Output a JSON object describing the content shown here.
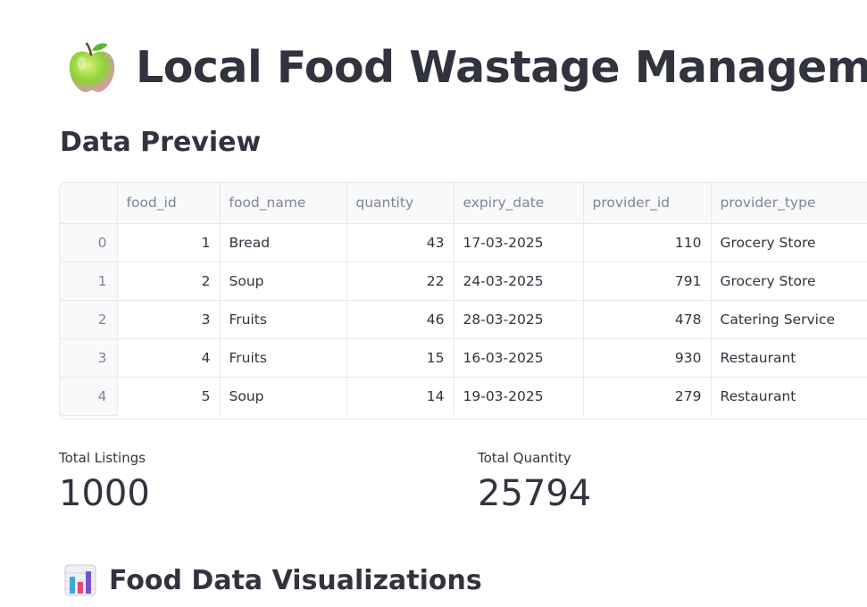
{
  "title": {
    "icon": "green-apple-icon",
    "text": "Local Food Wastage Management System"
  },
  "preview": {
    "heading": "Data Preview",
    "columns": [
      "food_id",
      "food_name",
      "quantity",
      "expiry_date",
      "provider_id",
      "provider_type"
    ],
    "rows": [
      {
        "index": "0",
        "food_id": "1",
        "food_name": "Bread",
        "quantity": "43",
        "expiry_date": "17-03-2025",
        "provider_id": "110",
        "provider_type": "Grocery Store"
      },
      {
        "index": "1",
        "food_id": "2",
        "food_name": "Soup",
        "quantity": "22",
        "expiry_date": "24-03-2025",
        "provider_id": "791",
        "provider_type": "Grocery Store"
      },
      {
        "index": "2",
        "food_id": "3",
        "food_name": "Fruits",
        "quantity": "46",
        "expiry_date": "28-03-2025",
        "provider_id": "478",
        "provider_type": "Catering Service"
      },
      {
        "index": "3",
        "food_id": "4",
        "food_name": "Fruits",
        "quantity": "15",
        "expiry_date": "16-03-2025",
        "provider_id": "930",
        "provider_type": "Restaurant"
      },
      {
        "index": "4",
        "food_id": "5",
        "food_name": "Soup",
        "quantity": "14",
        "expiry_date": "19-03-2025",
        "provider_id": "279",
        "provider_type": "Restaurant"
      }
    ]
  },
  "metrics": {
    "total_listings": {
      "label": "Total Listings",
      "value": "1000"
    },
    "total_quantity": {
      "label": "Total Quantity",
      "value": "25794"
    }
  },
  "visualizations": {
    "icon": "bar-chart-icon",
    "heading": "Food Data Visualizations"
  },
  "colors": {
    "text": "#31333f",
    "muted": "#808495",
    "border": "#e6e8ed",
    "header_bg": "#f8f9fb"
  }
}
